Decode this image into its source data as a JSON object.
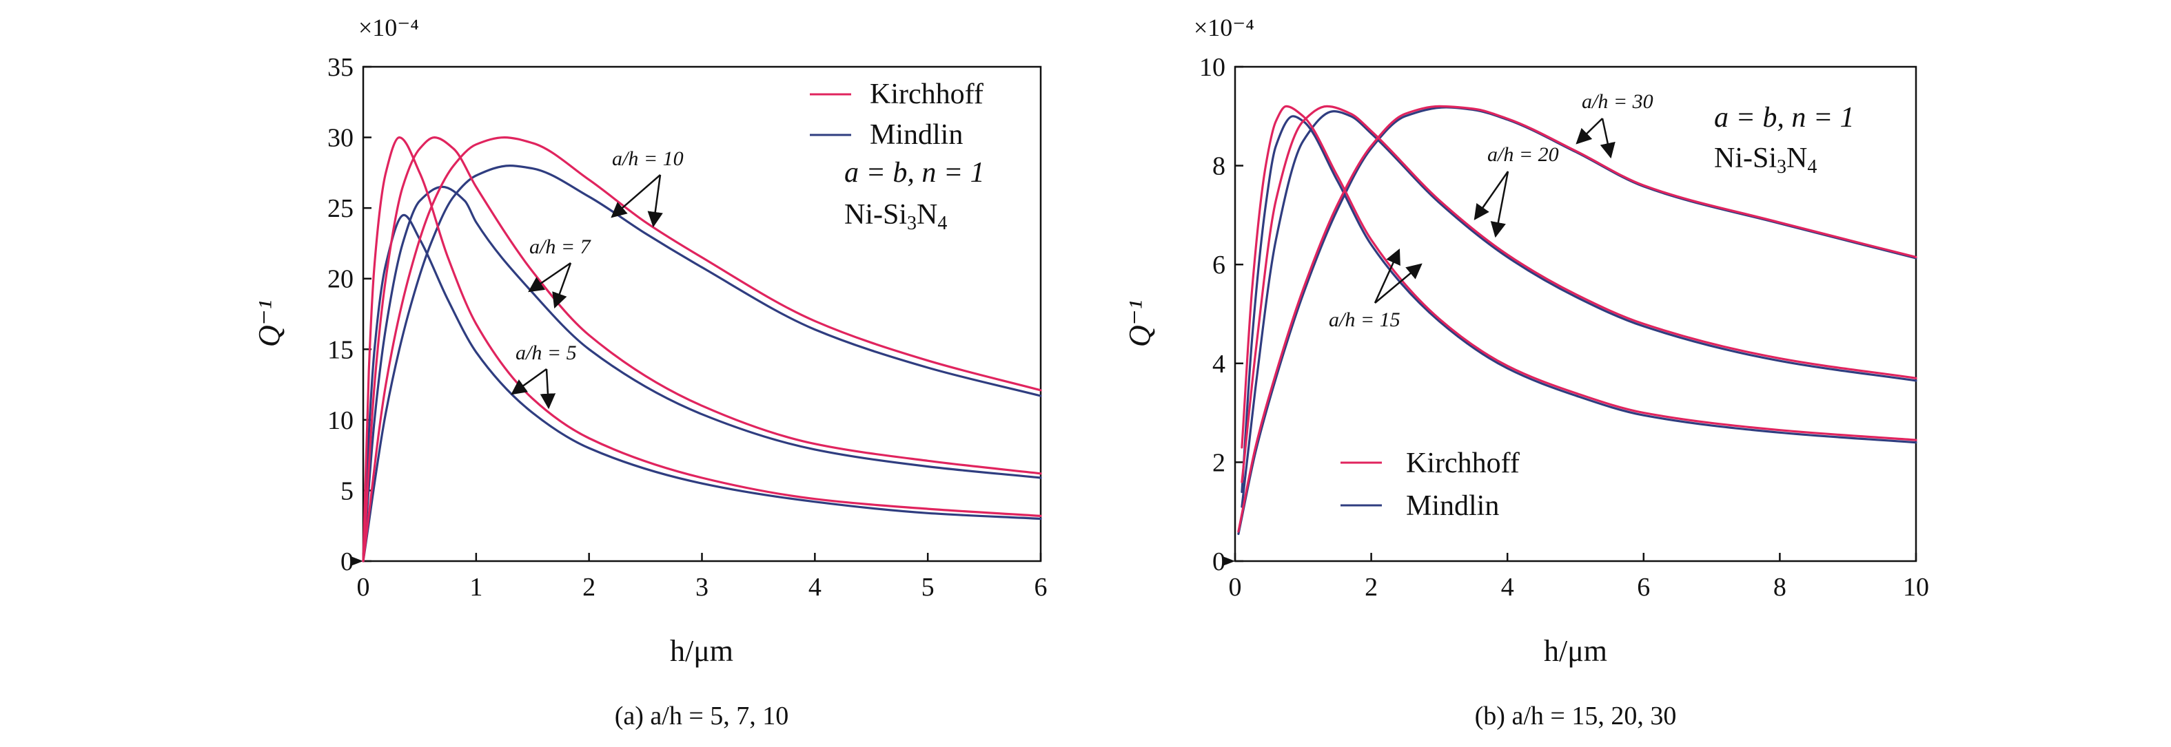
{
  "chart_data": [
    {
      "id": "a",
      "type": "line",
      "caption": "(a) a/h = 5, 7, 10",
      "xlabel": "h/μm",
      "ylabel": "Q⁻¹",
      "y_multiplier": "×10⁻⁴",
      "xlim": [
        0,
        6
      ],
      "ylim": [
        0,
        35
      ],
      "xticks": [
        0,
        1,
        2,
        3,
        4,
        5,
        6
      ],
      "yticks": [
        0,
        5,
        10,
        15,
        20,
        25,
        30,
        35
      ],
      "legend": {
        "placement": "top-right",
        "entries": [
          "Kirchhoff",
          "Mindlin"
        ]
      },
      "note_lines": [
        "a = b, n = 1",
        "Ni-Si₃N₄"
      ],
      "colors": {
        "Kirchhoff": "#e0245e",
        "Mindlin": "#2f3d80"
      },
      "annotations": [
        "a/h = 10",
        "a/h = 7",
        "a/h = 5"
      ],
      "series": [
        {
          "model": "Kirchhoff",
          "group": "a/h = 5",
          "peak_x": 0.32,
          "peak_y": 30.0,
          "x": [
            0,
            0.05,
            0.1,
            0.2,
            0.32,
            0.5,
            0.75,
            1,
            1.5,
            2,
            3,
            4,
            5,
            6
          ],
          "y": [
            0,
            13.5,
            21.0,
            27.5,
            30.0,
            27.5,
            21.5,
            16.8,
            11.5,
            8.7,
            5.9,
            4.4,
            3.7,
            3.2
          ]
        },
        {
          "model": "Mindlin",
          "group": "a/h = 5",
          "peak_x": 0.36,
          "peak_y": 24.5,
          "x": [
            0,
            0.05,
            0.1,
            0.2,
            0.36,
            0.5,
            0.75,
            1,
            1.5,
            2,
            3,
            4,
            5,
            6
          ],
          "y": [
            0,
            9.0,
            15.0,
            21.0,
            24.5,
            22.8,
            18.5,
            14.8,
            10.5,
            8.0,
            5.5,
            4.2,
            3.4,
            3.0
          ]
        },
        {
          "model": "Kirchhoff",
          "group": "a/h = 7",
          "peak_x": 0.63,
          "peak_y": 30.0,
          "x": [
            0,
            0.1,
            0.2,
            0.35,
            0.5,
            0.63,
            0.8,
            1,
            1.5,
            2,
            3,
            4,
            5,
            6
          ],
          "y": [
            0,
            12.5,
            20.0,
            26.5,
            29.2,
            30.0,
            29.2,
            26.5,
            20.5,
            16.0,
            11.0,
            8.3,
            7.1,
            6.2
          ]
        },
        {
          "model": "Mindlin",
          "group": "a/h = 7",
          "peak_x": 0.7,
          "peak_y": 26.5,
          "x": [
            0,
            0.1,
            0.2,
            0.35,
            0.5,
            0.7,
            0.9,
            1,
            1.5,
            2,
            3,
            4,
            5,
            6
          ],
          "y": [
            0,
            10.0,
            16.5,
            22.5,
            25.5,
            26.5,
            25.5,
            24.0,
            19.0,
            15.0,
            10.4,
            7.9,
            6.7,
            5.9
          ]
        },
        {
          "model": "Kirchhoff",
          "group": "a/h = 10",
          "peak_x": 1.25,
          "peak_y": 30.0,
          "x": [
            0,
            0.2,
            0.4,
            0.6,
            0.8,
            1,
            1.25,
            1.5,
            2,
            2.5,
            3,
            4,
            5,
            6
          ],
          "y": [
            0,
            12.5,
            20.0,
            25.0,
            28.0,
            29.5,
            30.0,
            29.6,
            27.0,
            24.0,
            21.5,
            17.0,
            14.2,
            12.1
          ]
        },
        {
          "model": "Mindlin",
          "group": "a/h = 10",
          "peak_x": 1.3,
          "peak_y": 28.0,
          "x": [
            0,
            0.2,
            0.4,
            0.6,
            0.8,
            1,
            1.3,
            1.5,
            2,
            2.5,
            3,
            4,
            5,
            6
          ],
          "y": [
            0,
            10.5,
            17.5,
            22.5,
            25.8,
            27.3,
            28.0,
            27.8,
            25.8,
            23.2,
            20.8,
            16.4,
            13.7,
            11.7
          ]
        }
      ]
    },
    {
      "id": "b",
      "type": "line",
      "caption": "(b) a/h = 15, 20, 30",
      "xlabel": "h/μm",
      "ylabel": "Q⁻¹",
      "y_multiplier": "×10⁻⁴",
      "xlim": [
        0,
        10
      ],
      "ylim": [
        0,
        10
      ],
      "xticks": [
        0,
        2,
        4,
        6,
        8,
        10
      ],
      "yticks": [
        0,
        2,
        4,
        6,
        8,
        10
      ],
      "legend": {
        "placement": "bottom-left",
        "entries": [
          "Kirchhoff",
          "Mindlin"
        ]
      },
      "note_lines": [
        "a = b, n = 1",
        "Ni-Si₃N₄"
      ],
      "colors": {
        "Kirchhoff": "#e0245e",
        "Mindlin": "#2f3d80"
      },
      "annotations": [
        "a/h = 30",
        "a/h = 20",
        "a/h = 15"
      ],
      "series": [
        {
          "model": "Kirchhoff",
          "group": "a/h = 15",
          "peak_x": 0.75,
          "peak_y": 9.2,
          "x": [
            0.1,
            0.25,
            0.45,
            0.6,
            0.75,
            1,
            1.5,
            2,
            3,
            4,
            5,
            6,
            8,
            10
          ],
          "y": [
            2.3,
            5.5,
            8.0,
            8.9,
            9.2,
            9.0,
            7.8,
            6.5,
            4.9,
            3.95,
            3.4,
            3.0,
            2.65,
            2.45
          ]
        },
        {
          "model": "Mindlin",
          "group": "a/h = 15",
          "peak_x": 0.85,
          "peak_y": 9.0,
          "x": [
            0.1,
            0.25,
            0.45,
            0.6,
            0.85,
            1,
            1.5,
            2,
            3,
            4,
            5,
            6,
            8,
            10
          ],
          "y": [
            1.4,
            4.5,
            7.2,
            8.4,
            9.0,
            8.9,
            7.7,
            6.4,
            4.85,
            3.9,
            3.35,
            2.95,
            2.6,
            2.4
          ]
        },
        {
          "model": "Kirchhoff",
          "group": "a/h = 20",
          "peak_x": 1.35,
          "peak_y": 9.2,
          "x": [
            0.1,
            0.3,
            0.6,
            1,
            1.35,
            1.7,
            2,
            3,
            4,
            5,
            6,
            8,
            10
          ],
          "y": [
            1.6,
            4.2,
            7.3,
            8.9,
            9.2,
            9.05,
            8.7,
            7.3,
            6.2,
            5.4,
            4.8,
            4.1,
            3.7
          ]
        },
        {
          "model": "Mindlin",
          "group": "a/h = 20",
          "peak_x": 1.45,
          "peak_y": 9.1,
          "x": [
            0.1,
            0.3,
            0.6,
            1,
            1.45,
            1.7,
            2,
            3,
            4,
            5,
            6,
            8,
            10
          ],
          "y": [
            1.1,
            3.5,
            6.5,
            8.5,
            9.1,
            9.0,
            8.65,
            7.25,
            6.15,
            5.35,
            4.75,
            4.05,
            3.65
          ]
        },
        {
          "model": "Kirchhoff",
          "group": "a/h = 30",
          "peak_x": 3.0,
          "peak_y": 9.2,
          "x": [
            0.05,
            0.3,
            0.6,
            1,
            1.5,
            2,
            2.5,
            3,
            3.5,
            4,
            5,
            6,
            8,
            10
          ],
          "y": [
            0.6,
            2.3,
            3.8,
            5.5,
            7.2,
            8.4,
            9.05,
            9.2,
            9.15,
            8.95,
            8.3,
            7.6,
            6.85,
            6.15
          ]
        },
        {
          "model": "Mindlin",
          "group": "a/h = 30",
          "peak_x": 3.1,
          "peak_y": 9.18,
          "x": [
            0.05,
            0.3,
            0.6,
            1,
            1.5,
            2,
            2.5,
            3.1,
            3.5,
            4,
            5,
            6,
            8,
            10
          ],
          "y": [
            0.55,
            2.2,
            3.7,
            5.4,
            7.1,
            8.35,
            9.0,
            9.18,
            9.13,
            8.93,
            8.28,
            7.58,
            6.83,
            6.13
          ]
        }
      ]
    }
  ]
}
